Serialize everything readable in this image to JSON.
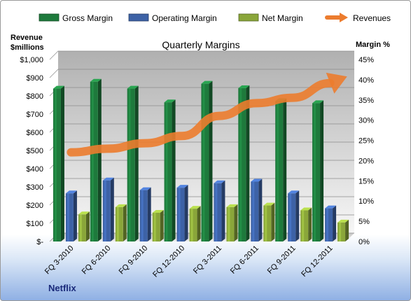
{
  "chart_data": {
    "type": "bar",
    "title": "Quarterly Margins",
    "footer": "Netflix",
    "left_axis_title": [
      "Revenue",
      "$millions"
    ],
    "right_axis_title": "Margin %",
    "categories": [
      "FQ 3-2010",
      "FQ 6-2010",
      "FQ 9-2010",
      "FQ 12-2010",
      "FQ 3-2011",
      "FQ 6-2011",
      "FQ 9-2011",
      "FQ 12-2011"
    ],
    "left_axis": {
      "min": 0,
      "max": 1000,
      "step": 100,
      "ticks": [
        "$-",
        "$100",
        "$200",
        "$300",
        "$400",
        "$500",
        "$600",
        "$700",
        "$800",
        "$900",
        "$1,000"
      ]
    },
    "right_axis": {
      "min": 0,
      "max": 45,
      "step": 5,
      "ticks": [
        "0%",
        "5%",
        "10%",
        "15%",
        "20%",
        "25%",
        "30%",
        "35%",
        "40%",
        "45%"
      ]
    },
    "series": [
      {
        "name": "Gross Margin",
        "axis": "right",
        "kind": "bar",
        "color": "#1e7a3c",
        "values": [
          37.8,
          39.5,
          37.8,
          34.4,
          39.0,
          37.9,
          34.7,
          34.2
        ]
      },
      {
        "name": "Operating Margin",
        "axis": "right",
        "kind": "bar",
        "color": "#3d62a6",
        "values": [
          11.9,
          15.1,
          12.7,
          13.3,
          14.4,
          14.8,
          11.9,
          8.2
        ]
      },
      {
        "name": "Net Margin",
        "axis": "right",
        "kind": "bar",
        "color": "#8aa63a",
        "values": [
          6.7,
          8.5,
          7.1,
          8.1,
          8.5,
          8.9,
          7.7,
          4.7
        ]
      },
      {
        "name": "Revenues",
        "axis": "left",
        "kind": "line-arrow",
        "color": "#ec7c2e",
        "values": [
          490,
          510,
          540,
          580,
          690,
          760,
          790,
          870
        ]
      }
    ],
    "legend_position": "top",
    "grid": true
  }
}
